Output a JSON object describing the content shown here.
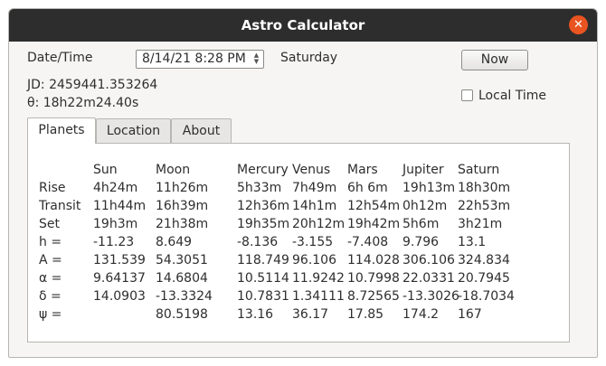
{
  "window": {
    "title": "Astro Calculator"
  },
  "icons": {
    "close": "close-icon"
  },
  "fields": {
    "datetime_label": "Date/Time",
    "datetime_value": "8/14/21 8:28 PM",
    "weekday": "Saturday",
    "jd": "JD: 2459441.353264",
    "theta": "θ: 18h22m24.40s",
    "now_button": "Now",
    "local_time_label": "Local Time",
    "local_time_checked": false
  },
  "tabs": [
    {
      "label": "Planets",
      "active": true
    },
    {
      "label": "Location",
      "active": false
    },
    {
      "label": "About",
      "active": false
    }
  ],
  "planets_table": {
    "headers": [
      "Sun",
      "Moon",
      "Mercury",
      "Venus",
      "Mars",
      "Jupiter",
      "Saturn"
    ],
    "rows": [
      {
        "label": "Rise",
        "values": [
          "4h24m",
          "11h26m",
          "5h33m",
          "7h49m",
          "6h 6m",
          "19h13m",
          "18h30m"
        ]
      },
      {
        "label": "Transit",
        "values": [
          "11h44m",
          "16h39m",
          "12h36m",
          "14h1m",
          "12h54m",
          "0h12m",
          "22h53m"
        ]
      },
      {
        "label": "Set",
        "values": [
          "19h3m",
          "21h38m",
          "19h35m",
          "20h12m",
          "19h42m",
          "5h6m",
          "3h21m"
        ]
      },
      {
        "label": "h =",
        "values": [
          "-11.23",
          "8.649",
          "-8.136",
          "-3.155",
          "-7.408",
          "9.796",
          "13.1"
        ]
      },
      {
        "label": "A =",
        "values": [
          "131.539",
          "54.3051",
          "118.749",
          "96.106",
          "114.028",
          "306.106",
          "324.834"
        ]
      },
      {
        "label": "α =",
        "values": [
          "9.64137",
          "14.6804",
          "10.5114",
          "11.9242",
          "10.7998",
          "22.0331",
          "20.7945"
        ]
      },
      {
        "label": "δ =",
        "values": [
          "14.0903",
          "-13.3324",
          "10.7831",
          "1.34111",
          "8.72565",
          "-13.3026",
          "-18.7034"
        ]
      },
      {
        "label": "ψ =",
        "values": [
          "",
          "80.5198",
          "13.16",
          "36.17",
          "17.85",
          "174.2",
          "167"
        ]
      }
    ]
  }
}
